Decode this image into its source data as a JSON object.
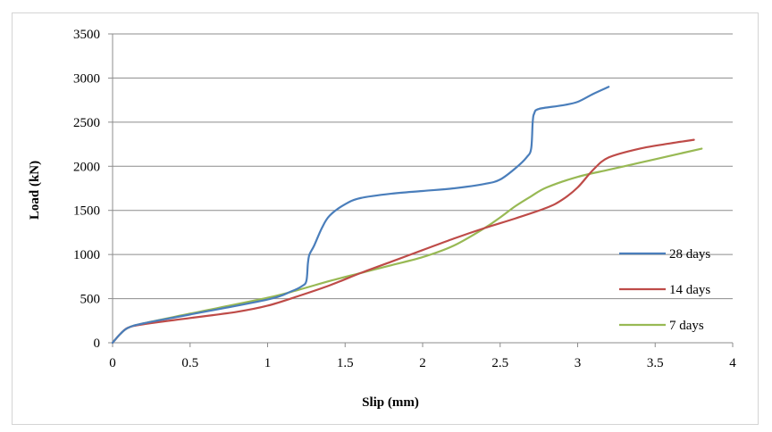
{
  "chart_data": {
    "type": "line",
    "title": "",
    "xlabel": "Slip (mm)",
    "ylabel": "Load (kN)",
    "xlim": [
      0,
      4
    ],
    "ylim": [
      0,
      3500
    ],
    "xticks": [
      0,
      0.5,
      1,
      1.5,
      2,
      2.5,
      3,
      3.5,
      4
    ],
    "yticks": [
      0,
      500,
      1000,
      1500,
      2000,
      2500,
      3000,
      3500
    ],
    "xtick_labels": [
      "0",
      "0.5",
      "1",
      "1.5",
      "2",
      "2.5",
      "3",
      "3.5",
      "4"
    ],
    "ytick_labels": [
      "0",
      "500",
      "1000",
      "1500",
      "2000",
      "2500",
      "3000",
      "3500"
    ],
    "grid": "horizontal",
    "legend_position": "right",
    "series": [
      {
        "name": "28 days",
        "color": "#4a7ebb",
        "points": [
          [
            0,
            0
          ],
          [
            0.05,
            100
          ],
          [
            0.1,
            170
          ],
          [
            0.2,
            220
          ],
          [
            0.5,
            320
          ],
          [
            1.0,
            490
          ],
          [
            1.15,
            580
          ],
          [
            1.22,
            640
          ],
          [
            1.25,
            700
          ],
          [
            1.26,
            900
          ],
          [
            1.27,
            1000
          ],
          [
            1.3,
            1100
          ],
          [
            1.35,
            1300
          ],
          [
            1.4,
            1440
          ],
          [
            1.5,
            1570
          ],
          [
            1.6,
            1640
          ],
          [
            1.8,
            1690
          ],
          [
            2.0,
            1720
          ],
          [
            2.2,
            1750
          ],
          [
            2.4,
            1800
          ],
          [
            2.5,
            1850
          ],
          [
            2.6,
            1980
          ],
          [
            2.67,
            2100
          ],
          [
            2.7,
            2200
          ],
          [
            2.71,
            2500
          ],
          [
            2.72,
            2600
          ],
          [
            2.75,
            2650
          ],
          [
            2.9,
            2690
          ],
          [
            3.0,
            2730
          ],
          [
            3.1,
            2820
          ],
          [
            3.2,
            2900
          ]
        ]
      },
      {
        "name": "14 days",
        "color": "#be4b48",
        "points": [
          [
            0,
            0
          ],
          [
            0.05,
            100
          ],
          [
            0.1,
            170
          ],
          [
            0.2,
            210
          ],
          [
            0.5,
            280
          ],
          [
            0.8,
            350
          ],
          [
            1.0,
            420
          ],
          [
            1.2,
            530
          ],
          [
            1.4,
            650
          ],
          [
            1.6,
            790
          ],
          [
            1.8,
            920
          ],
          [
            2.0,
            1050
          ],
          [
            2.2,
            1180
          ],
          [
            2.4,
            1300
          ],
          [
            2.6,
            1410
          ],
          [
            2.8,
            1530
          ],
          [
            2.9,
            1620
          ],
          [
            3.0,
            1760
          ],
          [
            3.1,
            1960
          ],
          [
            3.2,
            2100
          ],
          [
            3.4,
            2200
          ],
          [
            3.6,
            2260
          ],
          [
            3.75,
            2300
          ]
        ]
      },
      {
        "name": "7 days",
        "color": "#98b954",
        "points": [
          [
            0,
            0
          ],
          [
            0.05,
            100
          ],
          [
            0.1,
            170
          ],
          [
            0.2,
            220
          ],
          [
            0.5,
            330
          ],
          [
            1.0,
            510
          ],
          [
            1.2,
            600
          ],
          [
            1.4,
            700
          ],
          [
            1.6,
            790
          ],
          [
            1.8,
            880
          ],
          [
            2.0,
            970
          ],
          [
            2.2,
            1100
          ],
          [
            2.4,
            1300
          ],
          [
            2.5,
            1420
          ],
          [
            2.6,
            1550
          ],
          [
            2.7,
            1660
          ],
          [
            2.8,
            1760
          ],
          [
            3.0,
            1880
          ],
          [
            3.2,
            1960
          ],
          [
            3.4,
            2040
          ],
          [
            3.6,
            2120
          ],
          [
            3.8,
            2200
          ]
        ]
      }
    ]
  }
}
